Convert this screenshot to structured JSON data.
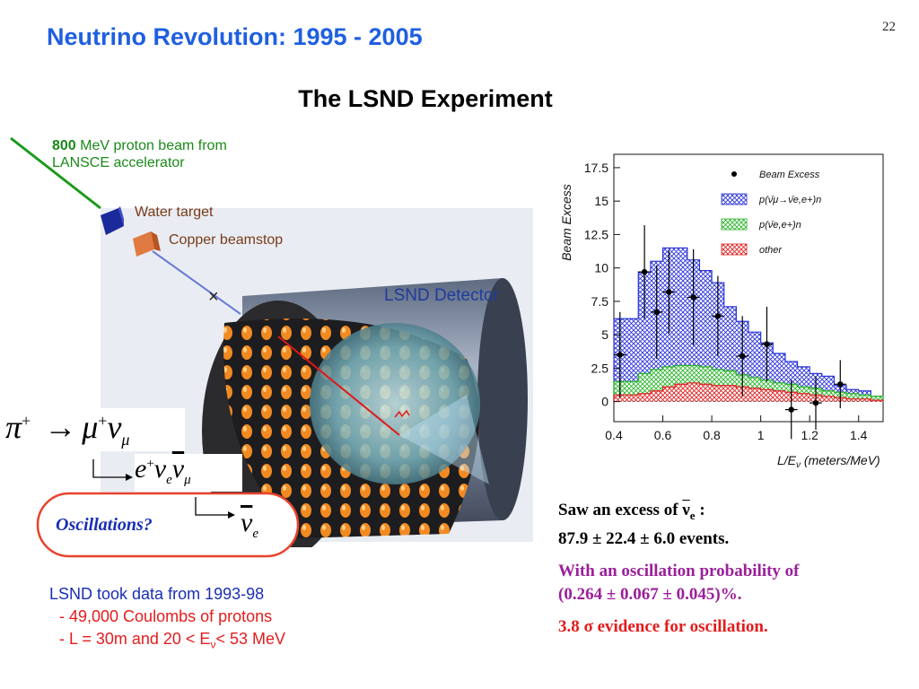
{
  "header": {
    "title": "Neutrino Revolution: 1995 - 2005",
    "page_number": "22"
  },
  "subtitle": "The LSND Experiment",
  "diagram": {
    "beam_label_line1_num": "800",
    "beam_label_line1_rest": " MeV proton beam from",
    "beam_label_line2": "LANSCE accelerator",
    "water_target": "Water target",
    "beamstop": "Copper beamstop",
    "detector": "LSND Detector",
    "oscillations": "Oscillations?"
  },
  "equations": {
    "pi": "π",
    "plus": "+",
    "arrow": "→",
    "mu": "μ",
    "nu": "ν",
    "e": "e",
    "sub_e": "e",
    "sub_mu": "μ"
  },
  "summary": {
    "excess_prefix": "Saw an excess of ",
    "nu": "ν",
    "nu_sub": "e",
    "excess_suffix": " :",
    "events": "87.9 ± 22.4 ± 6.0 events.",
    "prob_line1": "With an oscillation probability of",
    "prob_line2": "(0.264 ± 0.067 ± 0.045)%.",
    "evidence_prefix": "3.8 ",
    "sigma": "σ",
    "evidence_suffix": " evidence for oscillation."
  },
  "lsnd_info": {
    "head": "LSND took data from 1993-98",
    "item1": "- 49,000 Coulombs of protons",
    "item2_prefix": "- L = 30m and 20 < E",
    "item2_sub": "ν",
    "item2_suffix": "< 53 MeV"
  },
  "colors": {
    "title_blue": "#1f5fe0",
    "green": "#1a8a1a",
    "brown": "#7a3a18",
    "purple": "#9b1f9b",
    "red": "#e41c1c",
    "oval": "#e8432c"
  },
  "chart_data": {
    "type": "bar",
    "title": "",
    "xlabel": "L/E",
    "xlabel_sub": "ν",
    "xlabel_units": " (meters/MeV)",
    "ylabel": "Beam Excess",
    "xlim": [
      0.4,
      1.5
    ],
    "ylim": [
      -1.5,
      18.5
    ],
    "x_ticks": [
      0.4,
      0.6,
      0.8,
      1,
      1.2,
      1.4
    ],
    "y_ticks": [
      0,
      2.5,
      5,
      7.5,
      10,
      12.5,
      15,
      17.5
    ],
    "bin_edges": [
      0.4,
      0.5,
      0.55,
      0.6,
      0.65,
      0.7,
      0.75,
      0.8,
      0.85,
      0.9,
      0.95,
      1.0,
      1.05,
      1.1,
      1.15,
      1.2,
      1.25,
      1.3,
      1.35,
      1.4,
      1.45,
      1.5
    ],
    "series": [
      {
        "name": "p(ν̄μ→ν̄e,e+)n",
        "fill": "#2a33d8",
        "values": [
          6.2,
          9.7,
          10.5,
          11.5,
          11.5,
          10.6,
          9.8,
          8.9,
          7.1,
          6.0,
          5.2,
          4.4,
          3.6,
          3.0,
          2.6,
          2.1,
          1.9,
          1.2,
          0.9,
          0.8,
          0.4
        ]
      },
      {
        "name": "p(ν̄e,e+)n",
        "fill": "#29b529",
        "values": [
          1.5,
          2.1,
          2.4,
          2.6,
          2.7,
          2.7,
          2.6,
          2.4,
          2.3,
          2.0,
          1.8,
          1.6,
          1.4,
          1.3,
          1.1,
          1.0,
          0.8,
          0.7,
          0.6,
          0.5,
          0.4
        ]
      },
      {
        "name": "other",
        "fill": "#e02020",
        "values": [
          0.5,
          0.6,
          0.8,
          1.1,
          1.3,
          1.4,
          1.3,
          1.2,
          1.2,
          1.1,
          1.0,
          0.9,
          0.8,
          0.7,
          0.6,
          0.5,
          0.4,
          0.3,
          0.2,
          0.2,
          0.1
        ]
      }
    ],
    "points_name": "Beam Excess",
    "points": [
      {
        "x": 0.425,
        "y": 3.5,
        "xerr": 0.025,
        "yerr": 3.2
      },
      {
        "x": 0.525,
        "y": 9.7,
        "xerr": 0.025,
        "yerr": 3.5
      },
      {
        "x": 0.575,
        "y": 6.7,
        "xerr": 0.025,
        "yerr": 3.5
      },
      {
        "x": 0.625,
        "y": 8.2,
        "xerr": 0.025,
        "yerr": 3.1
      },
      {
        "x": 0.725,
        "y": 7.8,
        "xerr": 0.025,
        "yerr": 3.6
      },
      {
        "x": 0.825,
        "y": 6.4,
        "xerr": 0.025,
        "yerr": 3.0
      },
      {
        "x": 0.925,
        "y": 3.4,
        "xerr": 0.025,
        "yerr": 3.0
      },
      {
        "x": 1.025,
        "y": 4.3,
        "xerr": 0.025,
        "yerr": 2.8
      },
      {
        "x": 1.125,
        "y": -0.6,
        "xerr": 0.025,
        "yerr": 2.2
      },
      {
        "x": 1.225,
        "y": -0.1,
        "xerr": 0.025,
        "yerr": 2.0
      },
      {
        "x": 1.325,
        "y": 1.3,
        "xerr": 0.025,
        "yerr": 1.8
      }
    ],
    "legend_placement": "top-right"
  }
}
